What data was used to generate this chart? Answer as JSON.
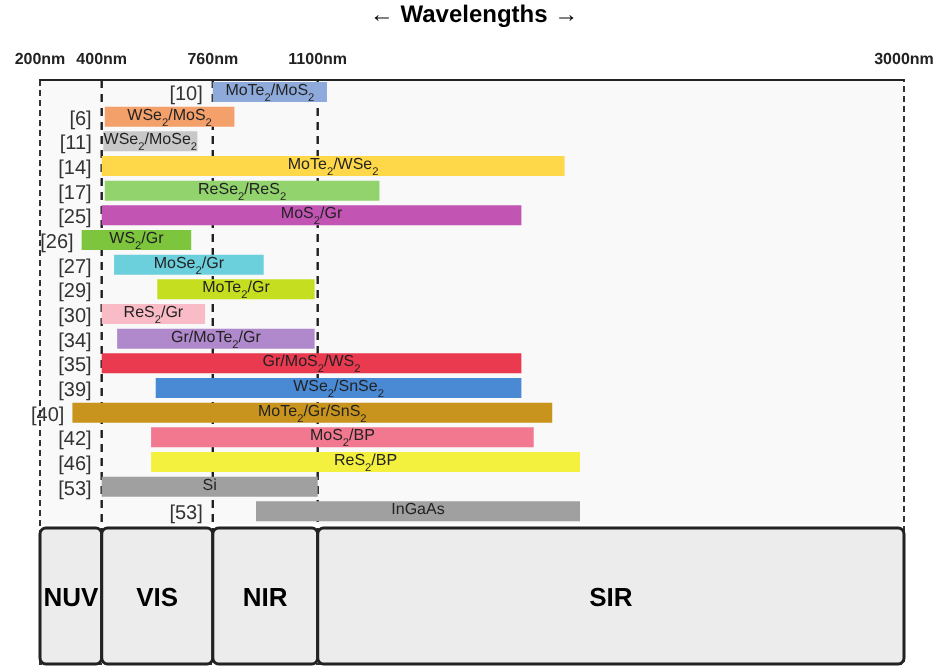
{
  "chart_data": {
    "type": "bar",
    "orientation": "horizontal",
    "xlabel": "← Wavelengths →",
    "categories": [
      "MoTe$_{2}$/MoS$_{2}$",
      "WSe$_{2}$/MoS$_{2}$",
      "WSe$_{2}$/MoSe$_{2}$",
      "MoTe$_{2}$/WSe$_{2}$",
      "ReSe$_{2}$/ReS$_{2}$",
      "MoS$_{2}$/Gr",
      "WS$_{2}$/Gr",
      "MoSe$_{2}$/Gr",
      "MoTe$_{2}$/Gr",
      "ReS$_{2}$/Gr",
      "Gr/MoTe$_{2}$/Gr",
      "Gr/MoS$_{2}$/WS$_{2}$",
      "WSe$_{2}$/SnSe$_{2}$",
      "MoTe$_{2}$/Gr/SnS$_{2}$",
      "MoS$_{2}$/BP",
      "ReS$_{2}$/BP",
      "Si",
      "InGaAs"
    ],
    "base": [
      760,
      410,
      405,
      400,
      410,
      400,
      335,
      440,
      580,
      400,
      450,
      400,
      575,
      305,
      560,
      560,
      400,
      900
    ],
    "values": [
      370,
      420,
      305,
      1500,
      890,
      1360,
      355,
      485,
      510,
      335,
      640,
      1360,
      1185,
      1555,
      1240,
      1390,
      700,
      1050
    ],
    "colors": [
      "#8eaadb",
      "#f4a06a",
      "#c8c8c8",
      "#ffd84a",
      "#92d36e",
      "#c254b4",
      "#7cc53c",
      "#6ccfdc",
      "#c5df20",
      "#f9bcc6",
      "#b088cc",
      "#ea3a50",
      "#4a8ad4",
      "#c8941e",
      "#f27890",
      "#f4f03e",
      "#a0a0a0",
      "#a0a0a0"
    ],
    "annotations": [
      "[10]",
      "[6]",
      "[11]",
      "[14]",
      "[17]",
      "[25]",
      "[26]",
      "[27]",
      "[29]",
      "[30]",
      "[34]",
      "[35]",
      "[39]",
      "[40]",
      "[42]",
      "[46]",
      "[53]",
      "[53]"
    ],
    "xlim": [
      200,
      3000
    ],
    "xticks": [
      {
        "value": 200,
        "label": "200nm"
      },
      {
        "value": 400,
        "label": "400nm"
      },
      {
        "value": 760,
        "label": "760nm"
      },
      {
        "value": 1100,
        "label": "1100nm"
      },
      {
        "value": 3000,
        "label": "3000nm"
      }
    ],
    "ref_lines": [
      {
        "axis": "x",
        "value": 400,
        "line_style": "dashed"
      },
      {
        "axis": "x",
        "value": 760,
        "line_style": "dashed"
      },
      {
        "axis": "x",
        "value": 1100,
        "line_style": "dashed"
      }
    ],
    "bands": [
      {
        "axis": "x",
        "from": 200,
        "to": 400,
        "label": "NUV"
      },
      {
        "axis": "x",
        "from": 400,
        "to": 760,
        "label": "VIS"
      },
      {
        "axis": "x",
        "from": 760,
        "to": 1100,
        "label": "NIR"
      },
      {
        "axis": "x",
        "from": 1100,
        "to": 3000,
        "label": "SIR"
      }
    ]
  }
}
